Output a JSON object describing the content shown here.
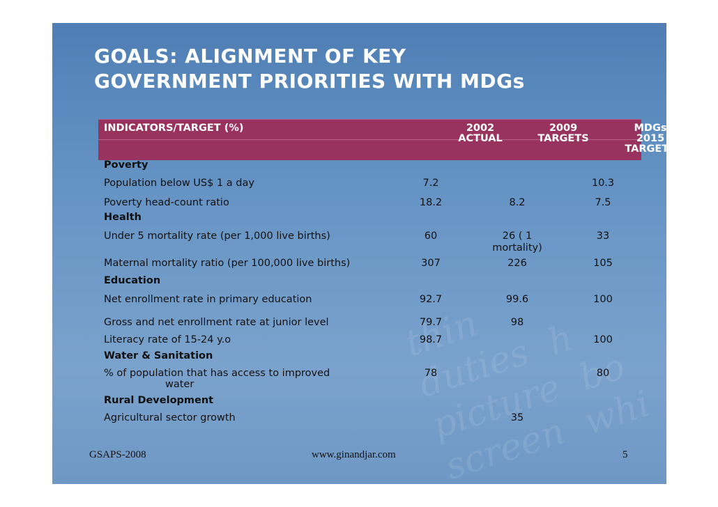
{
  "title_line1": "GOALS: ALIGNMENT OF KEY",
  "title_line2": "GOVERNMENT PRIORITIES WITH MDGs",
  "header": {
    "indicator": "INDICATORS/TARGET (%)",
    "col2002_a": "2002",
    "col2002_b": "ACTUAL",
    "col2009_a": "2009",
    "col2009_b": "TARGETS",
    "colmdg_a": "MDGs",
    "colmdg_b": "2015",
    "colmdg_c": "TARGETS"
  },
  "rows": {
    "poverty": "Poverty",
    "pop_below": {
      "label": "Population below US$ 1 a day",
      "v2002": "7.2",
      "v2009": "",
      "vmdg": "10.3"
    },
    "headcount": {
      "label": "Poverty head-count ratio",
      "v2002": "18.2",
      "v2009": "8.2",
      "vmdg": "7.5"
    },
    "health": "Health",
    "under5": {
      "label": "Under 5 mortality rate (per 1,000 live births)",
      "v2002": "60",
      "v2009_a": "26 ( 1",
      "v2009_b": "mortality)",
      "vmdg": "33"
    },
    "maternal": {
      "label": "Maternal mortality ratio (per 100,000 live births)",
      "v2002": "307",
      "v2009": "226",
      "vmdg": "105"
    },
    "education": "Education",
    "net_enroll": {
      "label": "Net enrollment rate in primary education",
      "v2002": "92.7",
      "v2009": "99.6",
      "vmdg": "100"
    },
    "gross_enroll": {
      "label": "Gross and net enrollment rate at junior level",
      "v2002": "79.7",
      "v2009": "98",
      "vmdg": ""
    },
    "literacy": {
      "label": "Literacy rate of 15-24 y.o",
      "v2002": "98.7",
      "v2009": "",
      "vmdg": "100"
    },
    "water": "Water & Sanitation",
    "water_access": {
      "label_a": "% of population that has access to improved",
      "label_b": "water",
      "v2002": "78",
      "v2009": "",
      "vmdg": "80"
    },
    "rural": "Rural Development",
    "agri": {
      "label": "Agricultural sector growth",
      "v2002": "",
      "v2009": "35",
      "vmdg": ""
    }
  },
  "footer": {
    "left": "GSAPS-2008",
    "center": "www.ginandjar.com",
    "page": "5"
  }
}
